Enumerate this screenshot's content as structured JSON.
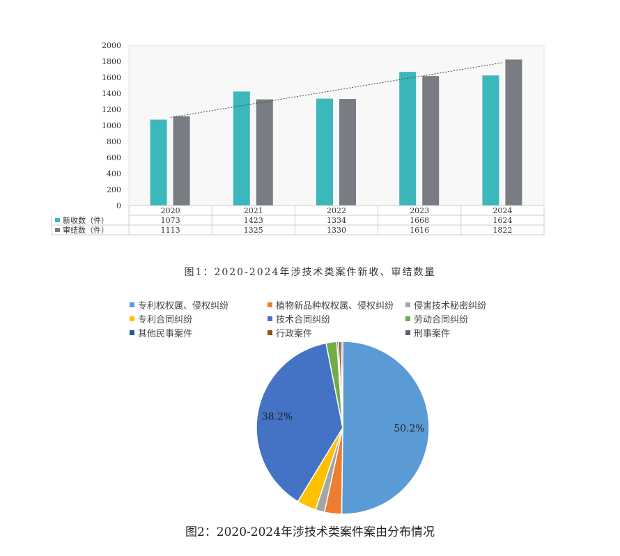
{
  "chart_data": [
    {
      "type": "bar",
      "categories": [
        "2020",
        "2021",
        "2022",
        "2023",
        "2024"
      ],
      "series": [
        {
          "name": "新收数（件）",
          "values": [
            1073,
            1423,
            1334,
            1668,
            1624
          ],
          "color": "#3cb8bd"
        },
        {
          "name": "审结数（件）",
          "values": [
            1113,
            1325,
            1330,
            1616,
            1822
          ],
          "color": "#7a7c84"
        }
      ],
      "trendline": {
        "series": "审结数（件）",
        "style": "dotted"
      },
      "yticks": [
        0,
        200,
        400,
        600,
        800,
        1000,
        1200,
        1400,
        1600,
        1800,
        2000
      ],
      "ylim": [
        0,
        2000
      ],
      "grid": false,
      "data_table": true,
      "caption": "图1：2020-2024年涉技术类案件新收、审结数量"
    },
    {
      "type": "pie",
      "slices": [
        {
          "label": "专利权权属、侵权纠纷",
          "value": 50.2,
          "color": "#5b9bd5",
          "data_label": "50.2%"
        },
        {
          "label": "植物新品种权权属、侵权纠纷",
          "value": 3.2,
          "color": "#ed7d31"
        },
        {
          "label": "侵害技术秘密纠纷",
          "value": 1.7,
          "color": "#a5a5a5"
        },
        {
          "label": "专利合同纠纷",
          "value": 3.6,
          "color": "#ffc000"
        },
        {
          "label": "技术合同纠纷",
          "value": 38.2,
          "color": "#4472c4",
          "data_label": "38.2%"
        },
        {
          "label": "劳动合同纠纷",
          "value": 2.0,
          "color": "#70ad47"
        },
        {
          "label": "其他民事案件",
          "value": 0.3,
          "color": "#255e91"
        },
        {
          "label": "行政案件",
          "value": 0.5,
          "color": "#9e480e"
        },
        {
          "label": "刑事案件",
          "value": 0.3,
          "color": "#636363"
        }
      ],
      "legend_position": "top",
      "caption": "图2：2020-2024年涉技术类案件案由分布情况"
    }
  ]
}
